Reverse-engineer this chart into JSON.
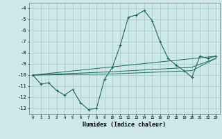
{
  "title": "",
  "xlabel": "Humidex (Indice chaleur)",
  "background_color": "#cce8e8",
  "grid_color": "#aacccc",
  "line_color": "#1a6b5a",
  "xlim": [
    -0.5,
    23.5
  ],
  "ylim": [
    -13.5,
    -3.5
  ],
  "yticks": [
    -13,
    -12,
    -11,
    -10,
    -9,
    -8,
    -7,
    -6,
    -5,
    -4
  ],
  "xticks": [
    0,
    1,
    2,
    3,
    4,
    5,
    6,
    7,
    8,
    9,
    10,
    11,
    12,
    13,
    14,
    15,
    16,
    17,
    18,
    19,
    20,
    21,
    22,
    23
  ],
  "series": [
    [
      0,
      -10.0
    ],
    [
      1,
      -10.8
    ],
    [
      2,
      -10.7
    ],
    [
      3,
      -11.4
    ],
    [
      4,
      -11.8
    ],
    [
      5,
      -11.3
    ],
    [
      6,
      -12.5
    ],
    [
      7,
      -13.1
    ],
    [
      8,
      -13.0
    ],
    [
      9,
      -10.4
    ],
    [
      10,
      -9.3
    ],
    [
      11,
      -7.3
    ],
    [
      12,
      -4.8
    ],
    [
      13,
      -4.6
    ],
    [
      14,
      -4.2
    ],
    [
      15,
      -5.1
    ],
    [
      16,
      -7.0
    ],
    [
      17,
      -8.5
    ],
    [
      18,
      -9.1
    ],
    [
      19,
      -9.6
    ],
    [
      20,
      -10.2
    ],
    [
      21,
      -8.3
    ],
    [
      22,
      -8.5
    ],
    [
      23,
      -8.3
    ]
  ],
  "series2": [
    [
      0,
      -10.0
    ],
    [
      23,
      -8.3
    ]
  ],
  "series3": [
    [
      0,
      -10.0
    ],
    [
      10,
      -9.7
    ],
    [
      20,
      -9.3
    ],
    [
      23,
      -8.5
    ]
  ],
  "series4": [
    [
      0,
      -10.0
    ],
    [
      10,
      -9.9
    ],
    [
      20,
      -9.6
    ],
    [
      23,
      -8.5
    ]
  ]
}
